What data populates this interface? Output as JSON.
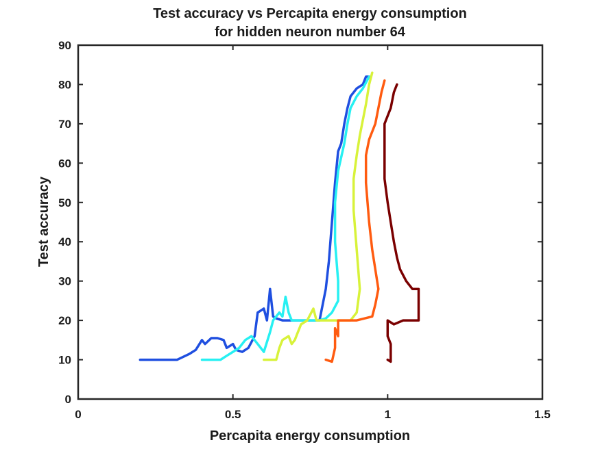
{
  "chart_data": {
    "type": "line",
    "title": [
      "Test accuracy vs Percapita energy consumption",
      "for hidden neuron number 64"
    ],
    "xlabel": "Percapita energy consumption",
    "ylabel": "Test accuracy",
    "xlim": [
      0,
      1.5
    ],
    "ylim": [
      0,
      90
    ],
    "xticks": [
      0,
      0.5,
      1,
      1.5
    ],
    "xtick_labels": [
      "0",
      "0.5",
      "1",
      "1.5"
    ],
    "yticks": [
      0,
      10,
      20,
      30,
      40,
      50,
      60,
      70,
      80,
      90
    ],
    "ytick_labels": [
      "0",
      "10",
      "20",
      "30",
      "40",
      "50",
      "60",
      "70",
      "80",
      "90"
    ],
    "grid": false,
    "legend": "none",
    "series": [
      {
        "color": "#1f4fe0",
        "points": [
          [
            0.2,
            10
          ],
          [
            0.32,
            10
          ],
          [
            0.36,
            11.5
          ],
          [
            0.38,
            12.5
          ],
          [
            0.4,
            15
          ],
          [
            0.41,
            14
          ],
          [
            0.43,
            15.5
          ],
          [
            0.45,
            15.5
          ],
          [
            0.47,
            15
          ],
          [
            0.48,
            13
          ],
          [
            0.5,
            14
          ],
          [
            0.51,
            12.5
          ],
          [
            0.53,
            12
          ],
          [
            0.55,
            13
          ],
          [
            0.57,
            16
          ],
          [
            0.58,
            22
          ],
          [
            0.6,
            23
          ],
          [
            0.61,
            20
          ],
          [
            0.62,
            28
          ],
          [
            0.63,
            21
          ],
          [
            0.64,
            20.5
          ],
          [
            0.66,
            20
          ],
          [
            0.7,
            20
          ],
          [
            0.78,
            20
          ],
          [
            0.8,
            28
          ],
          [
            0.81,
            35
          ],
          [
            0.82,
            45
          ],
          [
            0.83,
            55
          ],
          [
            0.84,
            63
          ],
          [
            0.85,
            65
          ],
          [
            0.86,
            70
          ],
          [
            0.87,
            74
          ],
          [
            0.88,
            77
          ],
          [
            0.9,
            79
          ],
          [
            0.92,
            80
          ],
          [
            0.93,
            82
          ],
          [
            0.94,
            82
          ]
        ]
      },
      {
        "color": "#27f0f2",
        "points": [
          [
            0.4,
            10
          ],
          [
            0.46,
            10
          ],
          [
            0.48,
            11
          ],
          [
            0.5,
            12
          ],
          [
            0.52,
            13
          ],
          [
            0.54,
            15
          ],
          [
            0.56,
            16
          ],
          [
            0.58,
            14
          ],
          [
            0.6,
            12
          ],
          [
            0.62,
            17
          ],
          [
            0.63,
            20
          ],
          [
            0.65,
            22
          ],
          [
            0.66,
            21
          ],
          [
            0.67,
            26
          ],
          [
            0.68,
            22
          ],
          [
            0.69,
            20
          ],
          [
            0.72,
            20
          ],
          [
            0.76,
            20
          ],
          [
            0.78,
            20
          ],
          [
            0.8,
            20.5
          ],
          [
            0.82,
            22
          ],
          [
            0.84,
            25
          ],
          [
            0.84,
            30
          ],
          [
            0.83,
            40
          ],
          [
            0.83,
            50
          ],
          [
            0.84,
            58
          ],
          [
            0.86,
            65
          ],
          [
            0.87,
            70
          ],
          [
            0.88,
            74
          ],
          [
            0.9,
            77
          ],
          [
            0.92,
            79
          ],
          [
            0.94,
            82
          ]
        ]
      },
      {
        "color": "#d8f23a",
        "points": [
          [
            0.6,
            10
          ],
          [
            0.64,
            10
          ],
          [
            0.65,
            13
          ],
          [
            0.66,
            15
          ],
          [
            0.68,
            16
          ],
          [
            0.69,
            14
          ],
          [
            0.7,
            15
          ],
          [
            0.71,
            17
          ],
          [
            0.72,
            19
          ],
          [
            0.74,
            20
          ],
          [
            0.76,
            23
          ],
          [
            0.77,
            20
          ],
          [
            0.82,
            20
          ],
          [
            0.88,
            20
          ],
          [
            0.9,
            22
          ],
          [
            0.91,
            28
          ],
          [
            0.9,
            38
          ],
          [
            0.89,
            48
          ],
          [
            0.89,
            56
          ],
          [
            0.9,
            62
          ],
          [
            0.91,
            67
          ],
          [
            0.92,
            71
          ],
          [
            0.93,
            75
          ],
          [
            0.94,
            80
          ],
          [
            0.95,
            83
          ]
        ]
      },
      {
        "color": "#ff5b10",
        "points": [
          [
            0.8,
            10
          ],
          [
            0.82,
            9.5
          ],
          [
            0.83,
            13
          ],
          [
            0.83,
            18
          ],
          [
            0.84,
            16
          ],
          [
            0.84,
            20
          ],
          [
            0.9,
            20
          ],
          [
            0.95,
            21
          ],
          [
            0.96,
            24
          ],
          [
            0.97,
            28
          ],
          [
            0.96,
            33
          ],
          [
            0.95,
            38
          ],
          [
            0.94,
            45
          ],
          [
            0.93,
            55
          ],
          [
            0.93,
            62
          ],
          [
            0.94,
            66
          ],
          [
            0.96,
            70
          ],
          [
            0.97,
            74
          ],
          [
            0.98,
            78
          ],
          [
            0.99,
            81
          ]
        ]
      },
      {
        "color": "#7a0000",
        "points": [
          [
            1.0,
            10
          ],
          [
            1.01,
            9.5
          ],
          [
            1.01,
            14
          ],
          [
            1.0,
            16
          ],
          [
            1.0,
            20
          ],
          [
            1.02,
            19
          ],
          [
            1.05,
            20
          ],
          [
            1.1,
            20
          ],
          [
            1.1,
            28
          ],
          [
            1.08,
            28
          ],
          [
            1.06,
            30
          ],
          [
            1.04,
            33
          ],
          [
            1.03,
            36
          ],
          [
            1.02,
            40
          ],
          [
            1.01,
            45
          ],
          [
            1.0,
            50
          ],
          [
            0.99,
            56
          ],
          [
            0.99,
            63
          ],
          [
            0.99,
            70
          ],
          [
            1.0,
            72
          ],
          [
            1.01,
            74
          ],
          [
            1.02,
            78
          ],
          [
            1.03,
            80
          ]
        ]
      }
    ]
  }
}
